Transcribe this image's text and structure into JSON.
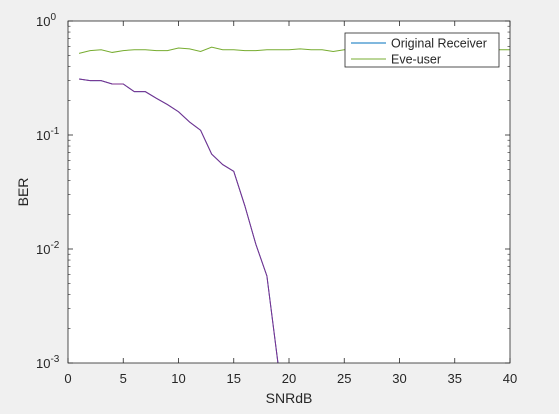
{
  "chart_data": {
    "type": "line",
    "title": "",
    "xlabel": "SNRdB",
    "ylabel": "BER",
    "xscale": "linear",
    "yscale": "log",
    "xlim": [
      0,
      40
    ],
    "ylim": [
      0.001,
      1
    ],
    "grid": false,
    "legend_position": "top-right",
    "x_ticks": [
      0,
      5,
      10,
      15,
      20,
      25,
      30,
      35,
      40
    ],
    "x_tick_labels": [
      "0",
      "5",
      "10",
      "15",
      "20",
      "25",
      "30",
      "35",
      "40"
    ],
    "y_ticks": [
      0.001,
      0.01,
      0.1,
      1
    ],
    "y_tick_labels": [
      {
        "base": "10",
        "exp": "-3"
      },
      {
        "base": "10",
        "exp": "-2"
      },
      {
        "base": "10",
        "exp": "-1"
      },
      {
        "base": "10",
        "exp": "0"
      }
    ],
    "series": [
      {
        "name": "Original Receiver",
        "color": "#0072bd",
        "x": [
          1,
          2,
          3,
          4,
          5,
          6,
          7,
          8,
          9,
          10,
          11,
          12,
          13,
          14,
          15,
          16,
          17,
          18,
          19
        ],
        "y": [
          0.31,
          0.3,
          0.3,
          0.28,
          0.28,
          0.24,
          0.24,
          0.21,
          0.185,
          0.16,
          0.13,
          0.11,
          0.068,
          0.055,
          0.048,
          0.024,
          0.011,
          0.0058,
          0.001
        ]
      },
      {
        "name": "Eve-user",
        "color": "#77ac30",
        "x": [
          1,
          2,
          3,
          4,
          5,
          6,
          7,
          8,
          9,
          10,
          11,
          12,
          13,
          14,
          15,
          16,
          17,
          18,
          19,
          20,
          21,
          22,
          23,
          24,
          25,
          26,
          27,
          28,
          29,
          30,
          31,
          32,
          33,
          34,
          35,
          36,
          37,
          38,
          39,
          40
        ],
        "y": [
          0.52,
          0.55,
          0.56,
          0.53,
          0.55,
          0.56,
          0.56,
          0.55,
          0.55,
          0.58,
          0.57,
          0.54,
          0.59,
          0.56,
          0.56,
          0.55,
          0.55,
          0.56,
          0.56,
          0.56,
          0.57,
          0.56,
          0.56,
          0.54,
          0.56,
          0.56,
          0.56,
          0.55,
          0.56,
          0.56,
          0.55,
          0.56,
          0.56,
          0.55,
          0.56,
          0.56,
          0.55,
          0.56,
          0.56,
          0.56
        ]
      },
      {
        "name": "",
        "color": "#7e2f8e",
        "x": [
          1,
          2,
          3,
          4,
          5,
          6,
          7,
          8,
          9,
          10,
          11,
          12,
          13,
          14,
          15,
          16,
          17,
          18,
          19
        ],
        "y": [
          0.31,
          0.3,
          0.3,
          0.28,
          0.28,
          0.24,
          0.24,
          0.21,
          0.185,
          0.16,
          0.13,
          0.11,
          0.068,
          0.055,
          0.048,
          0.024,
          0.011,
          0.0058,
          0.001
        ]
      }
    ],
    "legend_entries": [
      {
        "label": "Original Receiver",
        "color": "#0072bd"
      },
      {
        "label": "Eve-user",
        "color": "#77ac30"
      }
    ]
  }
}
